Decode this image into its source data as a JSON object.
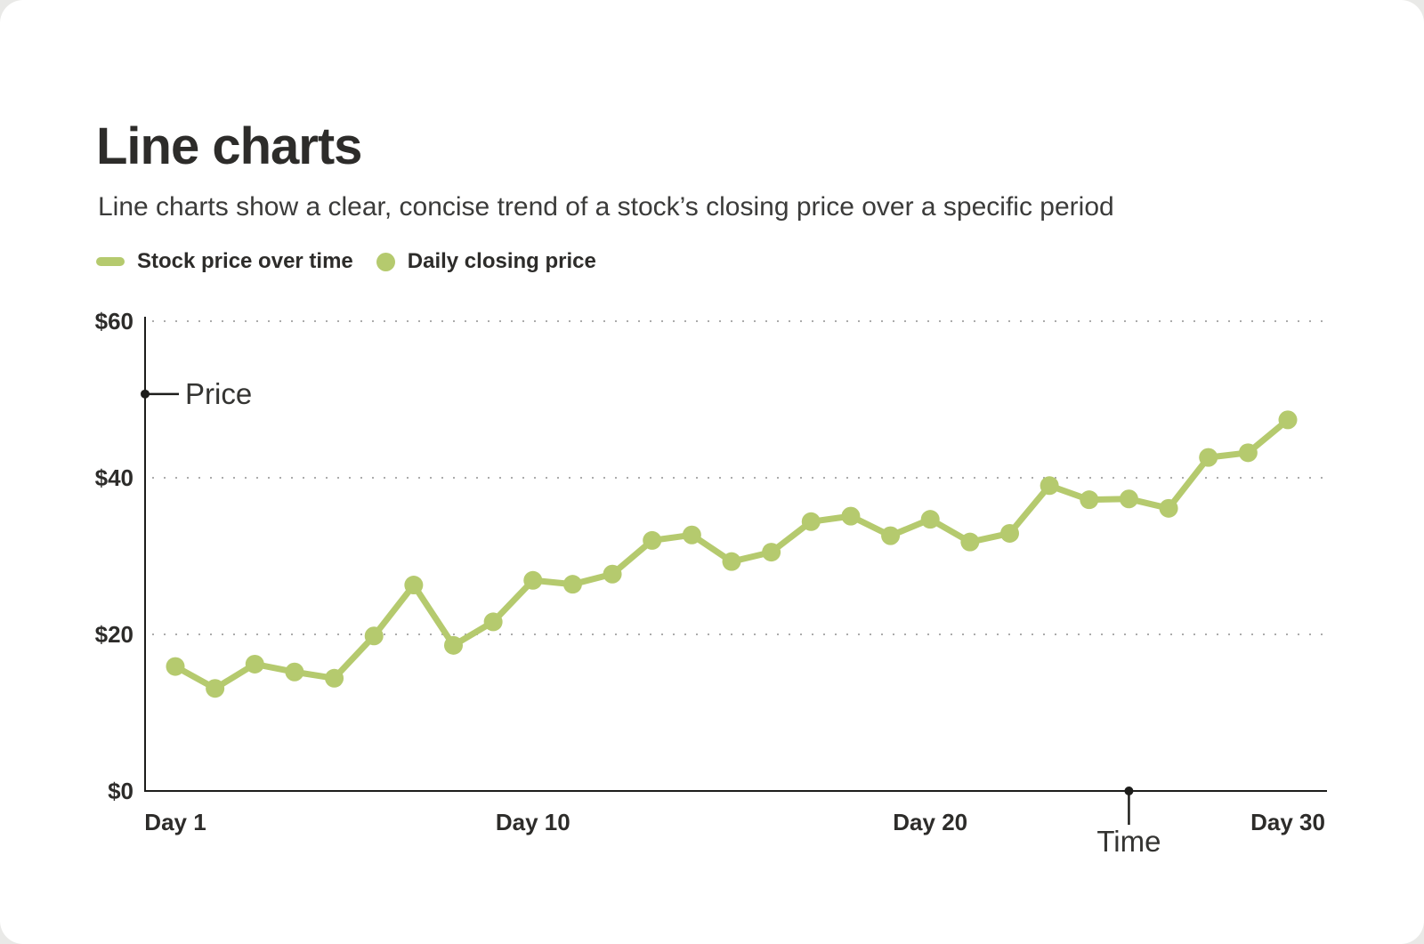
{
  "card": {
    "title": "Line charts",
    "subtitle": "Line charts show a clear, concise trend of a stock’s closing price over a specific period"
  },
  "legend": {
    "items": [
      {
        "swatch": "line-swatch",
        "label": "Stock price over time"
      },
      {
        "swatch": "dot-swatch",
        "label": "Daily closing price"
      }
    ]
  },
  "colors": {
    "series_green": "#b5ca6e",
    "axis_black": "#1d1d1b",
    "grid_gray": "#ababab",
    "text_dark": "#2d2c2a"
  },
  "chart_data": {
    "type": "line",
    "title": "Stock price over time",
    "xlabel": "Time",
    "ylabel": "Price",
    "ylim": [
      0,
      60
    ],
    "grid": "horizontal-dotted",
    "legend_position": "top-left",
    "series": [
      {
        "name": "Daily closing price",
        "values": [
          15.9,
          13.1,
          16.2,
          15.2,
          14.4,
          19.8,
          26.3,
          18.6,
          21.6,
          26.9,
          26.4,
          27.7,
          32.0,
          32.7,
          29.3,
          30.5,
          34.4,
          35.1,
          32.6,
          34.7,
          31.8,
          32.9,
          39.0,
          37.2,
          37.3,
          36.1,
          42.6,
          43.2,
          47.4
        ]
      }
    ],
    "n_points": 29,
    "x_tick_labels": [
      {
        "label": "Day 1",
        "point_index": 0
      },
      {
        "label": "Day 10",
        "point_index": 9
      },
      {
        "label": "Day 20",
        "point_index": 19
      },
      {
        "label": "Day 30",
        "point_index": 28
      }
    ],
    "y_ticks": [
      {
        "label": "$0",
        "value": 0
      },
      {
        "label": "$20",
        "value": 20
      },
      {
        "label": "$40",
        "value": 40
      },
      {
        "label": "$60",
        "value": 60
      }
    ],
    "y_axis_annotation": {
      "label": "Price",
      "value": 50.7
    },
    "x_axis_annotation": {
      "label": "Time",
      "point_index": 24
    }
  }
}
